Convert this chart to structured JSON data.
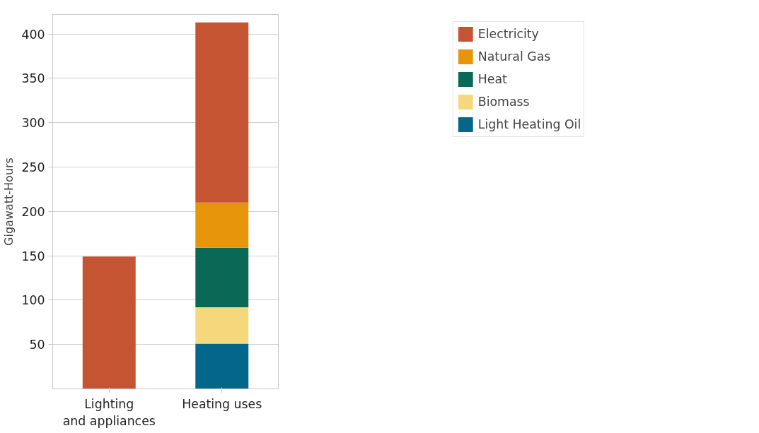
{
  "chart_data": {
    "type": "bar",
    "stacked": true,
    "ylabel": "Gigawatt-Hours",
    "categories": [
      "Lighting\nand appliances",
      "Heating uses"
    ],
    "series": [
      {
        "name": "Light Heating Oil",
        "color": "#03668a",
        "values": [
          null,
          51
        ]
      },
      {
        "name": "Biomass",
        "color": "#f6d87c",
        "values": [
          null,
          41
        ]
      },
      {
        "name": "Heat",
        "color": "#096856",
        "values": [
          null,
          67
        ]
      },
      {
        "name": "Natural Gas",
        "color": "#e7960b",
        "values": [
          null,
          51
        ]
      },
      {
        "name": "Electricity",
        "color": "#c55532",
        "values": [
          149,
          203
        ]
      }
    ],
    "ylim": [
      0,
      422
    ],
    "yticks": [
      50,
      100,
      150,
      200,
      250,
      300,
      350,
      400
    ],
    "grid": "y",
    "legend": "top right"
  }
}
